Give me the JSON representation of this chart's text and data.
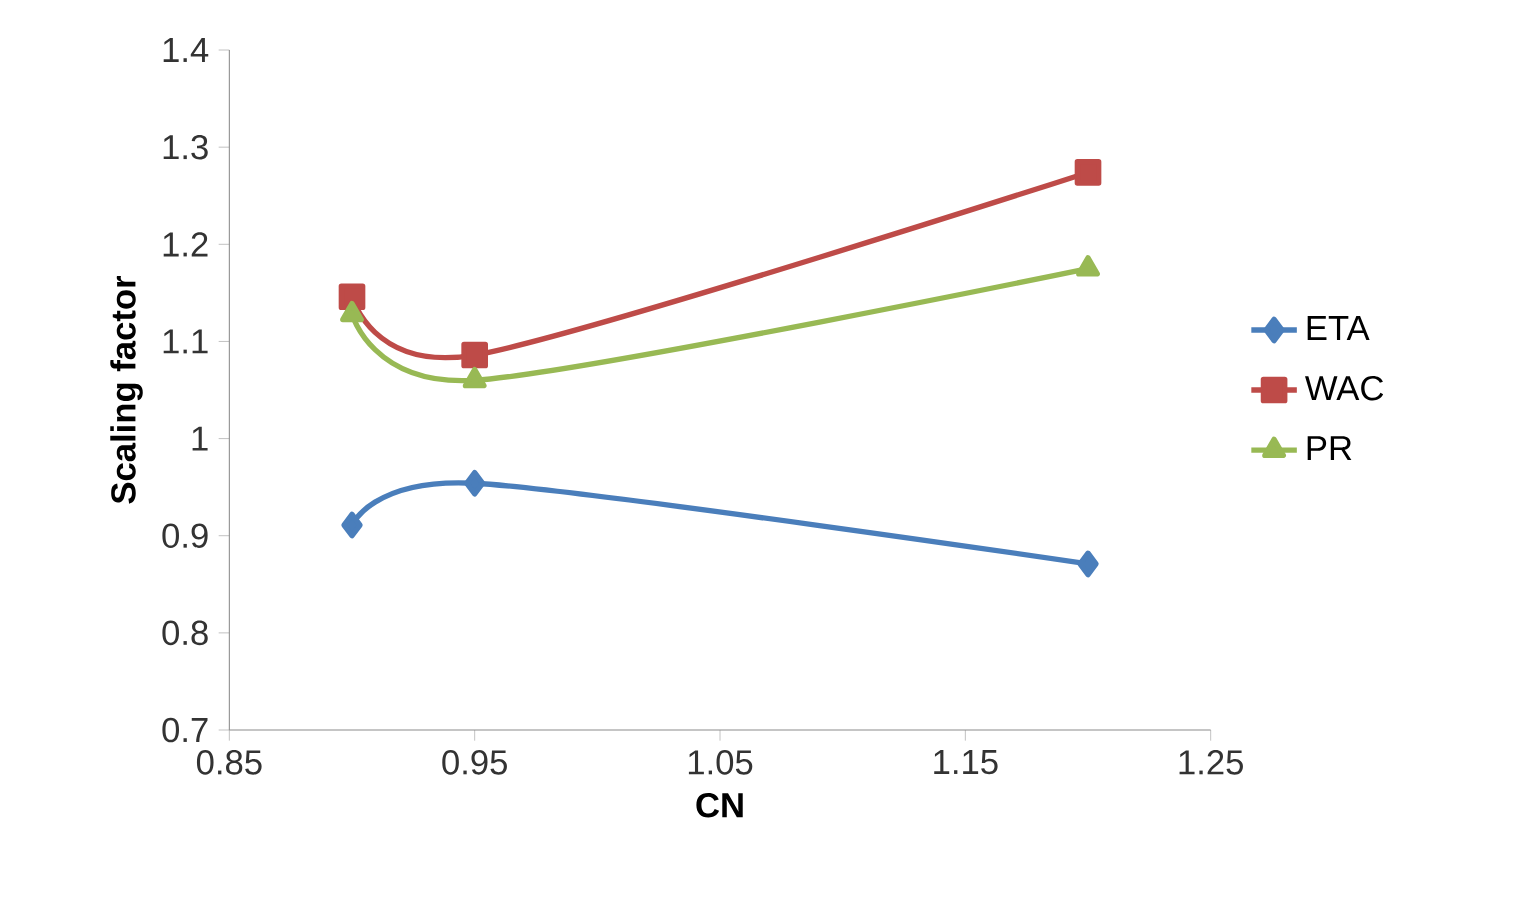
{
  "chart_data": {
    "type": "line",
    "xlabel": "CN",
    "ylabel": "Scaling factor",
    "x": [
      0.9,
      0.95,
      1.2
    ],
    "series": [
      {
        "name": "ETA",
        "color": "#4a7ebb",
        "marker": "diamond",
        "values": [
          0.911,
          0.954,
          0.871
        ]
      },
      {
        "name": "WAC",
        "color": "#be4b48",
        "marker": "square",
        "values": [
          1.146,
          1.086,
          1.274
        ]
      },
      {
        "name": "PR",
        "color": "#98b954",
        "marker": "triangle",
        "values": [
          1.128,
          1.06,
          1.175
        ]
      }
    ],
    "xlim": [
      0.85,
      1.25
    ],
    "xticks": [
      0.85,
      0.95,
      1.05,
      1.15,
      1.25
    ],
    "ylim": [
      0.7,
      1.4
    ],
    "yticks": [
      0.7,
      0.8,
      0.9,
      1,
      1.1,
      1.2,
      1.3,
      1.4
    ],
    "grid": false,
    "legend": "right"
  }
}
